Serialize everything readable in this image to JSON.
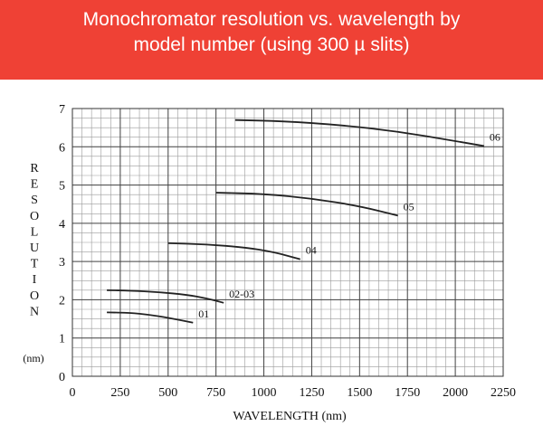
{
  "header": {
    "title_line1": "Monochromator resolution vs. wavelength by",
    "title_line2": "model number (using 300 µ slits)",
    "background_color": "#ef4135",
    "text_color": "#ffffff"
  },
  "chart_data": {
    "type": "line",
    "title": "Monochromator resolution vs. wavelength by model number (using 300 µ slits)",
    "xlabel": "WAVELENGTH (nm)",
    "ylabel_letters": [
      "R",
      "E",
      "S",
      "O",
      "L",
      "U",
      "T",
      "I",
      "O",
      "N"
    ],
    "ylabel_unit": "(nm)",
    "xlim": [
      0,
      2250
    ],
    "ylim": [
      0,
      7
    ],
    "x_ticks": [
      "0",
      "250",
      "500",
      "750",
      "1000",
      "1250",
      "1500",
      "1750",
      "2000",
      "2250"
    ],
    "y_ticks": [
      "0",
      "1",
      "2",
      "3",
      "4",
      "5",
      "6",
      "7"
    ],
    "grid": true,
    "minor_grid": true,
    "line_color": "#222222",
    "series": [
      {
        "name": "01",
        "x": [
          180,
          300,
          400,
          500,
          630
        ],
        "y": [
          1.67,
          1.66,
          1.61,
          1.53,
          1.4
        ]
      },
      {
        "name": "02-03",
        "x": [
          180,
          300,
          450,
          600,
          700,
          790
        ],
        "y": [
          2.25,
          2.24,
          2.2,
          2.13,
          2.04,
          1.92
        ]
      },
      {
        "name": "04",
        "x": [
          500,
          700,
          900,
          1050,
          1190
        ],
        "y": [
          3.48,
          3.45,
          3.37,
          3.25,
          3.06
        ]
      },
      {
        "name": "05",
        "x": [
          750,
          1000,
          1250,
          1500,
          1700
        ],
        "y": [
          4.8,
          4.77,
          4.65,
          4.45,
          4.2
        ]
      },
      {
        "name": "06",
        "x": [
          850,
          1100,
          1400,
          1700,
          2000,
          2150
        ],
        "y": [
          6.7,
          6.67,
          6.57,
          6.4,
          6.15,
          6.02
        ]
      }
    ]
  }
}
